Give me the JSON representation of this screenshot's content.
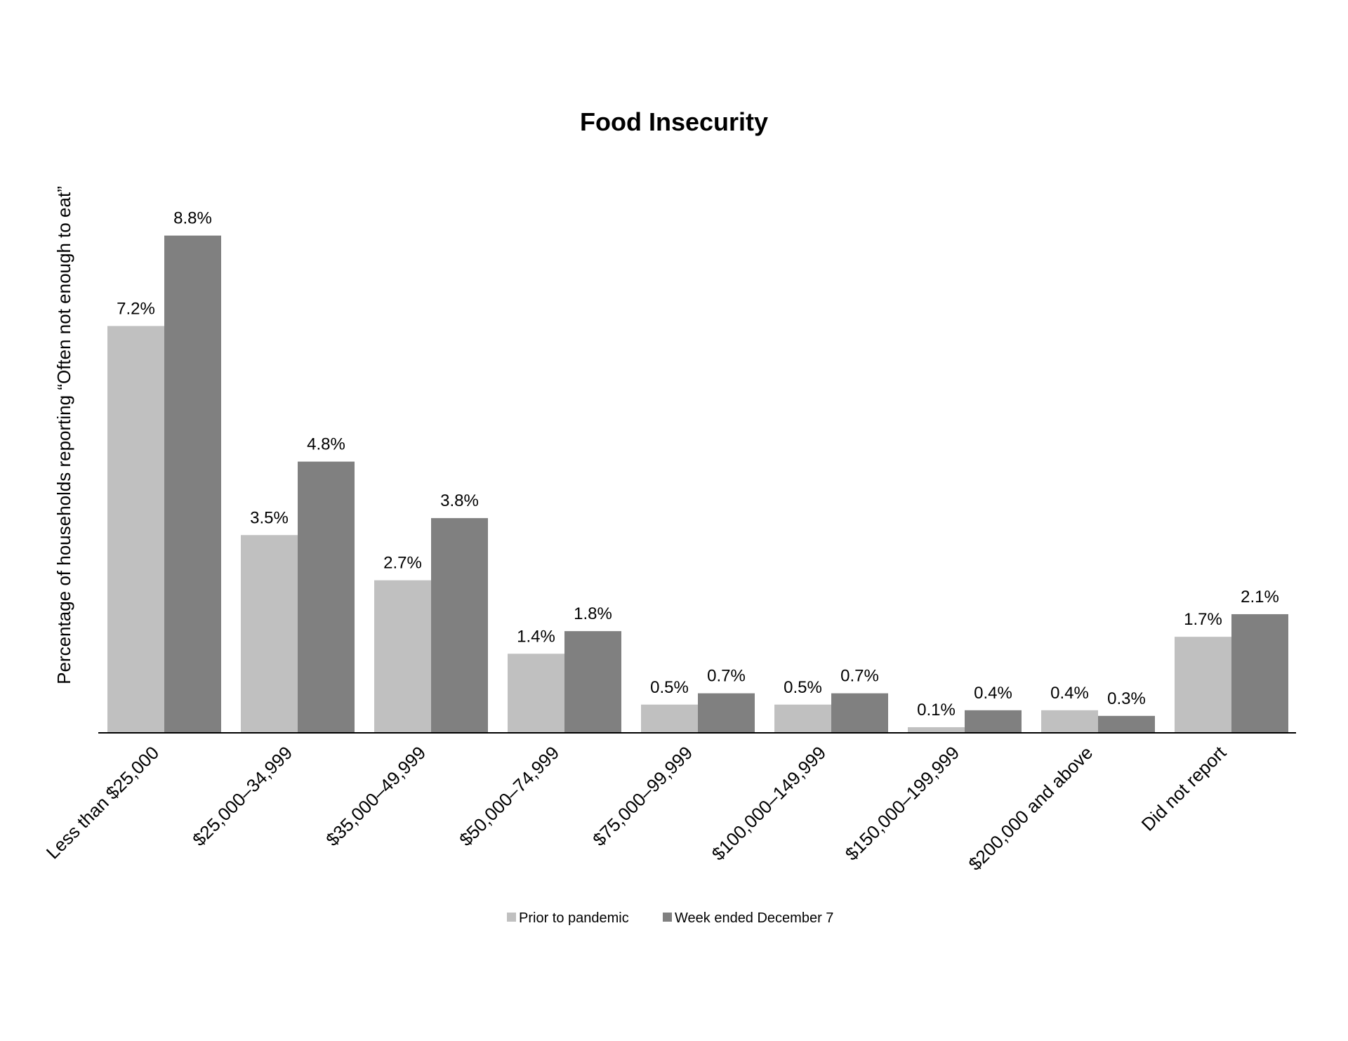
{
  "chart_data": {
    "type": "bar",
    "title": "Food Insecurity",
    "xlabel": "",
    "ylabel": "Percentage of households reporting “Often not enough to eat”",
    "categories": [
      "Less than $25,000",
      "$25,000–34,999",
      "$35,000–49,999",
      "$50,000–74,999",
      "$75,000–99,999",
      "$100,000–149,999",
      "$150,000–199,999",
      "$200,000 and above",
      "Did not report"
    ],
    "series": [
      {
        "name": "Prior to pandemic",
        "color": "#c0c0c0",
        "values": [
          7.2,
          3.5,
          2.7,
          1.4,
          0.5,
          0.5,
          0.1,
          0.4,
          1.7
        ],
        "labels": [
          "7.2%",
          "3.5%",
          "2.7%",
          "1.4%",
          "0.5%",
          "0.5%",
          "0.1%",
          "0.4%",
          "1.7%"
        ]
      },
      {
        "name": "Week ended December 7",
        "color": "#808080",
        "values": [
          8.8,
          4.8,
          3.8,
          1.8,
          0.7,
          0.7,
          0.4,
          0.3,
          2.1
        ],
        "labels": [
          "8.8%",
          "4.8%",
          "3.8%",
          "1.8%",
          "0.7%",
          "0.7%",
          "0.4%",
          "0.3%",
          "2.1%"
        ]
      }
    ],
    "ylim": [
      0,
      10
    ],
    "grid": false,
    "legend": "bottom-center"
  }
}
